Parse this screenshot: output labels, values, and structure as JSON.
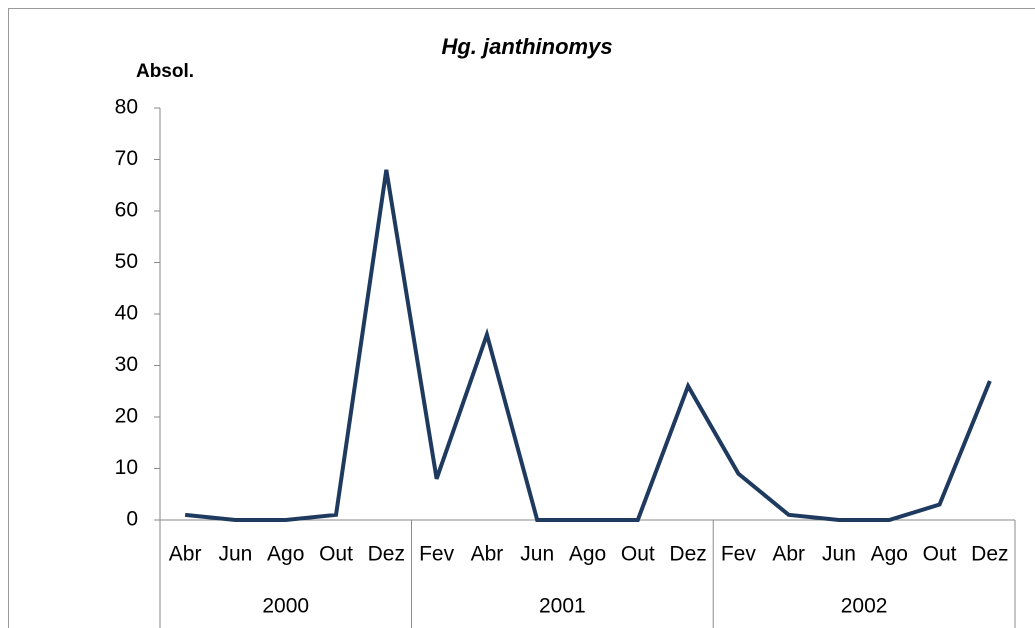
{
  "chart_data": {
    "type": "line",
    "title": "Hg. janthinomys",
    "y_label": "Absol.",
    "groups": [
      {
        "name": "2000",
        "categories": [
          "Abr",
          "Jun",
          "Ago",
          "Out",
          "Dez"
        ]
      },
      {
        "name": "2001",
        "categories": [
          "Fev",
          "Abr",
          "Jun",
          "Ago",
          "Out",
          "Dez"
        ]
      },
      {
        "name": "2002",
        "categories": [
          "Fev",
          "Abr",
          "Jun",
          "Ago",
          "Out",
          "Dez"
        ]
      }
    ],
    "values": [
      1,
      0,
      0,
      1,
      68,
      8,
      36,
      0,
      0,
      0,
      26,
      9,
      1,
      0,
      0,
      3,
      27
    ],
    "color": "#1f3a5f",
    "ylim": [
      0,
      80
    ],
    "yticks": [
      0,
      10,
      20,
      30,
      40,
      50,
      60,
      70,
      80
    ]
  }
}
